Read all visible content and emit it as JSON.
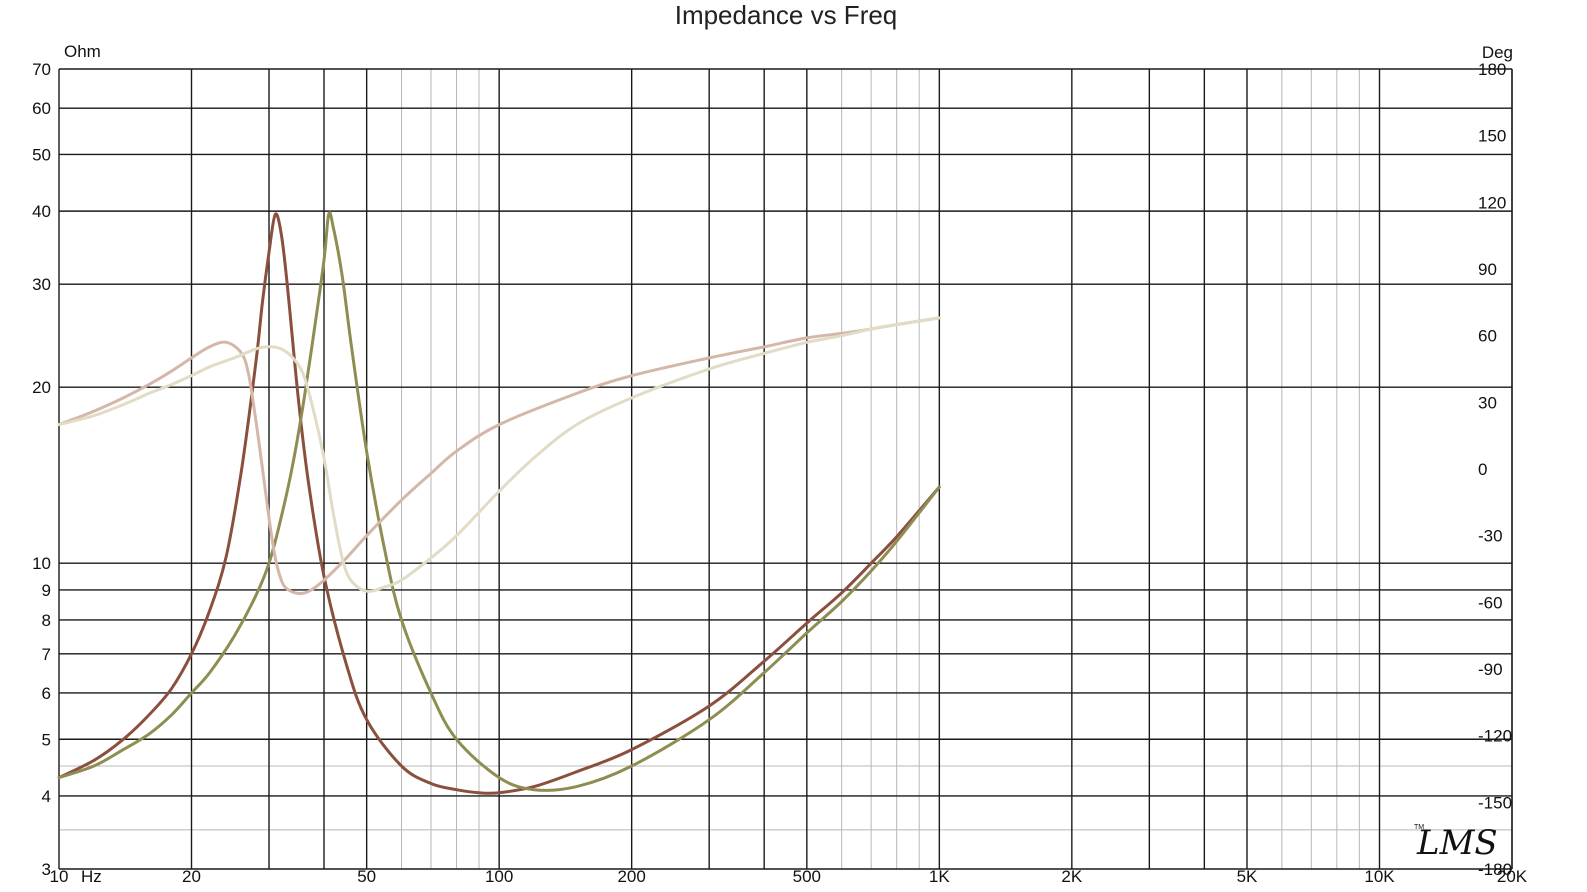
{
  "chart_data": {
    "type": "line",
    "title": "Impedance vs Freq",
    "left_unit": "Ohm",
    "right_unit": "Deg",
    "x_unit": "Hz",
    "x_scale": "log",
    "y_scale": "log",
    "xlim": [
      10,
      20000
    ],
    "ylim": [
      3,
      70
    ],
    "y2lim": [
      -180,
      180
    ],
    "grid": true,
    "x_tick_labels": [
      {
        "value": 10,
        "label": "10"
      },
      {
        "value": 20,
        "label": "20"
      },
      {
        "value": 50,
        "label": "50"
      },
      {
        "value": 100,
        "label": "100"
      },
      {
        "value": 200,
        "label": "200"
      },
      {
        "value": 500,
        "label": "500"
      },
      {
        "value": 1000,
        "label": "1K"
      },
      {
        "value": 2000,
        "label": "2K"
      },
      {
        "value": 5000,
        "label": "5K"
      },
      {
        "value": 10000,
        "label": "10K"
      },
      {
        "value": 20000,
        "label": "20K"
      }
    ],
    "y_tick_labels": [
      {
        "value": 3,
        "label": "3"
      },
      {
        "value": 4,
        "label": "4"
      },
      {
        "value": 5,
        "label": "5"
      },
      {
        "value": 6,
        "label": "6"
      },
      {
        "value": 7,
        "label": "7"
      },
      {
        "value": 8,
        "label": "8"
      },
      {
        "value": 9,
        "label": "9"
      },
      {
        "value": 10,
        "label": "10"
      },
      {
        "value": 20,
        "label": "20"
      },
      {
        "value": 30,
        "label": "30"
      },
      {
        "value": 40,
        "label": "40"
      },
      {
        "value": 50,
        "label": "50"
      },
      {
        "value": 60,
        "label": "60"
      },
      {
        "value": 70,
        "label": "70"
      }
    ],
    "y2_tick_labels": [
      {
        "value": 180,
        "label": "180"
      },
      {
        "value": 150,
        "label": "150"
      },
      {
        "value": 120,
        "label": "120"
      },
      {
        "value": 90,
        "label": "90"
      },
      {
        "value": 60,
        "label": "60"
      },
      {
        "value": 30,
        "label": "30"
      },
      {
        "value": 0,
        "label": "0"
      },
      {
        "value": -30,
        "label": "-30"
      },
      {
        "value": -60,
        "label": "-60"
      },
      {
        "value": -90,
        "label": "-90"
      },
      {
        "value": -120,
        "label": "-120"
      },
      {
        "value": -150,
        "label": "-150"
      },
      {
        "value": -180,
        "label": "-180"
      }
    ],
    "series": [
      {
        "axis": "left",
        "color": "#8b4f3e",
        "x": [
          10,
          12,
          14,
          16,
          18,
          20,
          22,
          24,
          26,
          28,
          29,
          30,
          31,
          32,
          33,
          35,
          37,
          40,
          45,
          50,
          60,
          70,
          80,
          90,
          100,
          120,
          150,
          200,
          300,
          400,
          500,
          600,
          700,
          800,
          1000
        ],
        "y": [
          4.3,
          4.6,
          5.0,
          5.5,
          6.1,
          7.0,
          8.3,
          10.3,
          14.5,
          22.0,
          28.0,
          34.0,
          39.5,
          36.5,
          30.0,
          19.0,
          13.5,
          9.5,
          6.7,
          5.4,
          4.5,
          4.2,
          4.1,
          4.05,
          4.05,
          4.15,
          4.4,
          4.8,
          5.7,
          6.8,
          7.9,
          8.9,
          10.0,
          11.1,
          13.5
        ]
      },
      {
        "axis": "left",
        "color": "#8e8d52",
        "x": [
          10,
          12,
          14,
          16,
          18,
          20,
          22,
          25,
          28,
          30,
          32,
          34,
          36,
          38,
          40,
          41,
          42,
          44,
          46,
          50,
          55,
          60,
          70,
          80,
          100,
          120,
          150,
          200,
          300,
          400,
          500,
          600,
          700,
          800,
          1000
        ],
        "y": [
          4.3,
          4.5,
          4.8,
          5.1,
          5.5,
          6.0,
          6.5,
          7.5,
          8.8,
          10.0,
          12.0,
          14.8,
          19.0,
          25.0,
          33.0,
          39.5,
          37.5,
          31.0,
          24.0,
          15.5,
          10.5,
          8.0,
          6.0,
          5.0,
          4.3,
          4.1,
          4.15,
          4.5,
          5.4,
          6.5,
          7.6,
          8.6,
          9.7,
          10.9,
          13.5
        ]
      },
      {
        "axis": "right",
        "color": "#d5b7aa",
        "x": [
          10,
          12,
          14,
          16,
          18,
          20,
          22,
          24,
          26,
          27,
          28,
          29,
          30,
          31,
          32,
          33,
          35,
          37,
          40,
          45,
          50,
          60,
          70,
          80,
          100,
          150,
          200,
          300,
          400,
          500,
          600,
          700,
          800,
          1000
        ],
        "y": [
          20,
          26,
          32,
          38,
          44,
          50,
          55,
          57,
          52,
          42,
          22,
          0,
          -22,
          -40,
          -50,
          -54,
          -56,
          -55,
          -50,
          -40,
          -30,
          -14,
          -2,
          8,
          20,
          34,
          42,
          50,
          55,
          59,
          61,
          63,
          65,
          68
        ]
      },
      {
        "axis": "right",
        "color": "#e0dcc6",
        "x": [
          10,
          12,
          14,
          16,
          18,
          20,
          22,
          25,
          28,
          30,
          32,
          34,
          36,
          38,
          40,
          42,
          44,
          46,
          50,
          55,
          60,
          70,
          80,
          100,
          120,
          150,
          200,
          300,
          400,
          500,
          600,
          700,
          800,
          1000
        ],
        "y": [
          20,
          24,
          29,
          34,
          38,
          42,
          46,
          50,
          54,
          55,
          54,
          50,
          42,
          25,
          5,
          -20,
          -40,
          -50,
          -55,
          -53,
          -50,
          -40,
          -30,
          -10,
          5,
          20,
          32,
          45,
          52,
          57,
          60,
          63,
          65,
          68
        ]
      }
    ]
  },
  "logo": {
    "text": "LMS",
    "tm": "TM"
  }
}
